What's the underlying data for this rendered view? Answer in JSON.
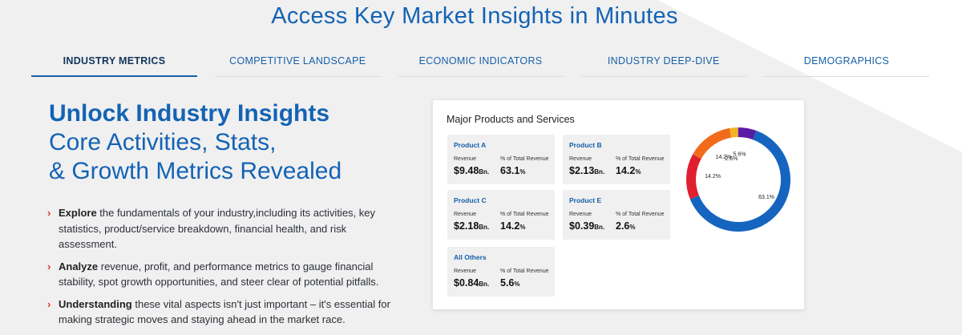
{
  "heading": "Access Key Market Insights in Minutes",
  "tabs": [
    {
      "label": "INDUSTRY METRICS",
      "active": true
    },
    {
      "label": "COMPETITIVE LANDSCAPE",
      "active": false
    },
    {
      "label": "ECONOMIC INDICATORS",
      "active": false
    },
    {
      "label": "INDUSTRY DEEP-DIVE",
      "active": false
    },
    {
      "label": "DEMOGRAPHICS",
      "active": false
    }
  ],
  "hero": {
    "title": "Unlock Industry Insights",
    "subtitle_line1": "Core Activities, Stats,",
    "subtitle_line2": "& Growth Metrics Revealed"
  },
  "bullets": [
    {
      "bold": "Explore",
      "text": " the fundamentals of your industry,including its activities, key statistics, product/service breakdown, financial health, and risk assessment."
    },
    {
      "bold": "Analyze",
      "text": " revenue, profit, and performance metrics to gauge financial stability, spot growth opportunities, and steer clear of potential pitfalls."
    },
    {
      "bold": "Understanding",
      "text": " these vital aspects isn't just important – it's essential for making strategic moves and staying ahead in the market race."
    }
  ],
  "card": {
    "title": "Major Products and Services",
    "revenue_label": "Revenue",
    "share_label": "% of Total Revenue",
    "products": [
      {
        "name": "Product A",
        "revenue": "$9.48",
        "unit": "Bn.",
        "share": "63.1",
        "pct": "%"
      },
      {
        "name": "Product B",
        "revenue": "$2.13",
        "unit": "Bn.",
        "share": "14.2",
        "pct": "%"
      },
      {
        "name": "Product C",
        "revenue": "$2.18",
        "unit": "Bn.",
        "share": "14.2",
        "pct": "%"
      },
      {
        "name": "Product E",
        "revenue": "$0.39",
        "unit": "Bn.",
        "share": "2.6",
        "pct": "%"
      },
      {
        "name": "All Others",
        "revenue": "$0.84",
        "unit": "Bn.",
        "share": "5.6",
        "pct": "%"
      }
    ]
  },
  "chart_data": {
    "type": "pie",
    "categories": [
      "Product A",
      "Product C",
      "Product B",
      "Product E",
      "All Others"
    ],
    "values": [
      63.1,
      14.2,
      14.2,
      2.6,
      5.6
    ],
    "labels": [
      "63.1%",
      "14.2%",
      "14.2%",
      "2.6%",
      "5.6%"
    ],
    "colors": [
      "#1565c0",
      "#e0202e",
      "#f26b1d",
      "#f5b324",
      "#5b1aa6"
    ],
    "title": ""
  }
}
